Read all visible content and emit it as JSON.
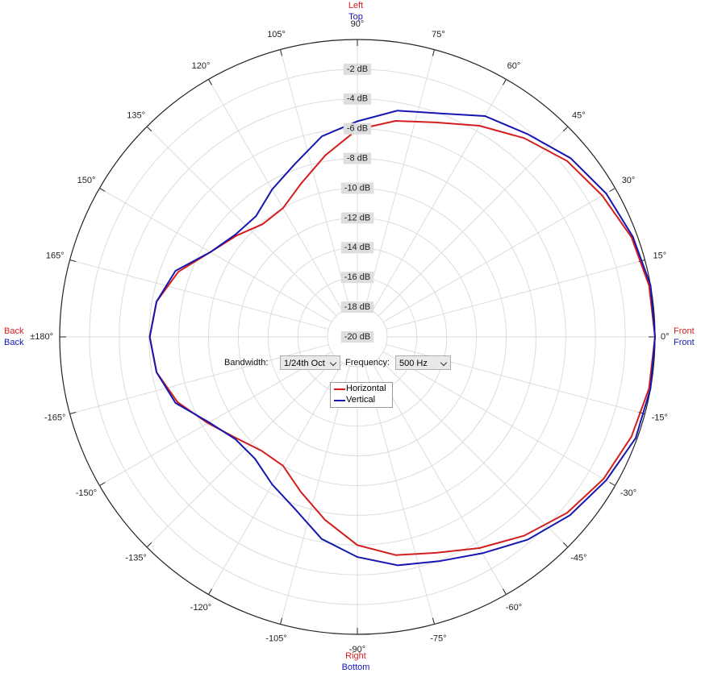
{
  "chart_data": {
    "type": "polar",
    "angles": [
      -180,
      -170,
      -160,
      -150,
      -140,
      -130,
      -120,
      -110,
      -100,
      -90,
      -80,
      -70,
      -60,
      -50,
      -40,
      -30,
      -20,
      -10,
      0,
      10,
      20,
      30,
      40,
      50,
      60,
      70,
      80,
      90,
      100,
      110,
      120,
      130,
      140,
      150,
      160,
      170,
      180
    ],
    "series": [
      {
        "name": "Horizontal",
        "color": "#d41e1e",
        "values": [
          -6.05,
          -6.3,
          -7.15,
          -8.4,
          -9.4,
          -10.0,
          -10.0,
          -8.9,
          -7.5,
          -6.0,
          -5.1,
          -4.55,
          -3.6,
          -2.55,
          -1.6,
          -0.9,
          -0.4,
          -0.1,
          0,
          -0.1,
          -0.4,
          -1.0,
          -1.6,
          -2.55,
          -3.6,
          -4.65,
          -5.25,
          -6.05,
          -7.6,
          -9.0,
          -10.0,
          -10.1,
          -9.4,
          -8.6,
          -7.2,
          -6.3,
          -6.05
        ]
      },
      {
        "name": "Vertical",
        "color": "#1616b0",
        "values": [
          -6.05,
          -6.3,
          -7.0,
          -8.5,
          -9.3,
          -9.3,
          -8.55,
          -7.7,
          -6.2,
          -5.2,
          -4.4,
          -3.95,
          -3.2,
          -2.2,
          -1.35,
          -0.7,
          -0.1,
          0,
          0,
          0,
          -0.3,
          -0.7,
          -1.3,
          -2.2,
          -2.85,
          -4.0,
          -4.55,
          -5.5,
          -6.3,
          -7.65,
          -8.55,
          -9.4,
          -9.3,
          -8.6,
          -7.0,
          -6.3,
          -6.05
        ]
      }
    ],
    "rlim": [
      -20,
      0
    ],
    "rticks": [
      {
        "value": -2,
        "label": "-2 dB"
      },
      {
        "value": -4,
        "label": "-4 dB"
      },
      {
        "value": -6,
        "label": "-6 dB"
      },
      {
        "value": -8,
        "label": "-8 dB"
      },
      {
        "value": -10,
        "label": "-10 dB"
      },
      {
        "value": -12,
        "label": "-12 dB"
      },
      {
        "value": -14,
        "label": "-14 dB"
      },
      {
        "value": -16,
        "label": "-16 dB"
      },
      {
        "value": -18,
        "label": "-18 dB"
      },
      {
        "value": -20,
        "label": "-20 dB"
      }
    ],
    "angle_ticks": [
      {
        "value": 0,
        "label": "0°"
      },
      {
        "value": 15,
        "label": "15°"
      },
      {
        "value": 30,
        "label": "30°"
      },
      {
        "value": 45,
        "label": "45°"
      },
      {
        "value": 60,
        "label": "60°"
      },
      {
        "value": 75,
        "label": "75°"
      },
      {
        "value": 90,
        "label": "90°"
      },
      {
        "value": 105,
        "label": "105°"
      },
      {
        "value": 120,
        "label": "120°"
      },
      {
        "value": 135,
        "label": "135°"
      },
      {
        "value": 150,
        "label": "150°"
      },
      {
        "value": 165,
        "label": "165°"
      },
      {
        "value": 180,
        "label": "±180°"
      },
      {
        "value": -165,
        "label": "-165°"
      },
      {
        "value": -150,
        "label": "-150°"
      },
      {
        "value": -135,
        "label": "-135°"
      },
      {
        "value": -120,
        "label": "-120°"
      },
      {
        "value": -105,
        "label": "-105°"
      },
      {
        "value": -90,
        "label": "-90°"
      },
      {
        "value": -75,
        "label": "-75°"
      },
      {
        "value": -60,
        "label": "-60°"
      },
      {
        "value": -45,
        "label": "-45°"
      },
      {
        "value": -30,
        "label": "-30°"
      },
      {
        "value": -15,
        "label": "-15°"
      }
    ],
    "direction_labels": {
      "top": [
        "Left",
        "Top"
      ],
      "bottom": [
        "Right",
        "Bottom"
      ],
      "left": [
        "Back",
        "Back"
      ],
      "right": [
        "Front",
        "Front"
      ]
    },
    "grid": true
  },
  "controls": {
    "bandwidth_label": "Bandwidth:",
    "bandwidth_value": "1/24th Oct",
    "frequency_label": "Frequency:",
    "frequency_value": "500 Hz"
  }
}
